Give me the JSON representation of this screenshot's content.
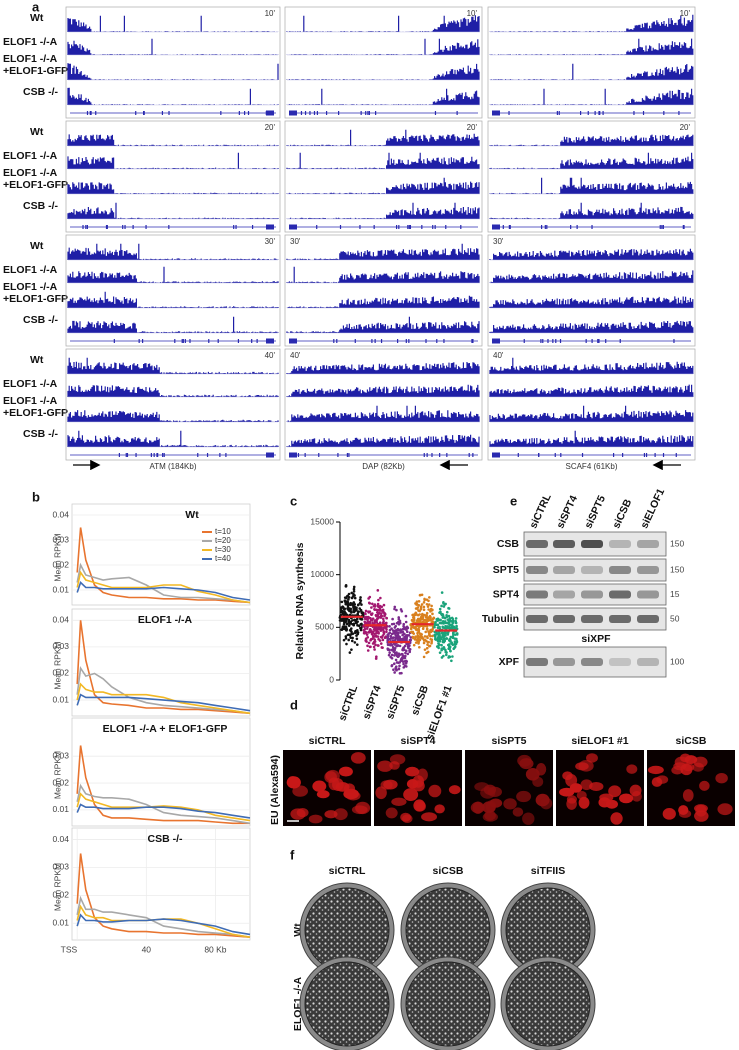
{
  "panel_labels": [
    "a",
    "b",
    "c",
    "d",
    "e",
    "f"
  ],
  "panel_a": {
    "condition_lines": [
      "Wt",
      "ELOF1 -/-A",
      "ELOF1 -/-A",
      "+ELOF1-GFP",
      "CSB -/-"
    ],
    "times": [
      "10'",
      "20'",
      "30'",
      "40'"
    ],
    "genes": [
      "ATM (184Kb)",
      "DAP (82Kb)",
      "SCAF4 (61Kb)"
    ]
  },
  "chart_data": [
    {
      "type": "line",
      "title": "Wt",
      "ylabel": "Mean RPKM",
      "x": [
        0,
        2,
        5,
        10,
        15,
        20,
        30,
        40,
        50,
        60,
        70,
        80,
        90,
        100
      ],
      "xlim": [
        -3,
        100
      ],
      "ylim": [
        0.004,
        0.042
      ],
      "yticks": [
        0.01,
        0.02,
        0.03,
        0.04
      ],
      "legend": "upper right",
      "series": [
        {
          "name": "t=10",
          "color": "#e8742f",
          "values": [
            0.017,
            0.035,
            0.022,
            0.012,
            0.009,
            0.008,
            0.007,
            0.007,
            0.0065,
            0.0065,
            0.006,
            0.006,
            0.0055,
            0.005
          ]
        },
        {
          "name": "t=20",
          "color": "#a8a8a8",
          "values": [
            0.013,
            0.02,
            0.016,
            0.015,
            0.014,
            0.0145,
            0.015,
            0.012,
            0.008,
            0.007,
            0.007,
            0.0065,
            0.006,
            0.005
          ]
        },
        {
          "name": "t=30",
          "color": "#f2b824",
          "values": [
            0.011,
            0.017,
            0.014,
            0.013,
            0.012,
            0.011,
            0.011,
            0.011,
            0.012,
            0.012,
            0.0095,
            0.008,
            0.006,
            0.005
          ]
        },
        {
          "name": "t=40",
          "color": "#3f6cb5",
          "values": [
            0.009,
            0.013,
            0.011,
            0.011,
            0.0105,
            0.0105,
            0.0105,
            0.0105,
            0.011,
            0.0105,
            0.01,
            0.009,
            0.007,
            0.006
          ]
        }
      ]
    },
    {
      "type": "line",
      "title": "ELOF1 -/-A",
      "ylabel": "Mean RPKM",
      "x": [
        0,
        2,
        5,
        10,
        15,
        20,
        30,
        40,
        50,
        60,
        70,
        80,
        90,
        100
      ],
      "xlim": [
        -3,
        100
      ],
      "ylim": [
        0.004,
        0.042
      ],
      "yticks": [
        0.01,
        0.02,
        0.03,
        0.04
      ],
      "series": [
        {
          "color": "#e8742f",
          "values": [
            0.016,
            0.04,
            0.025,
            0.012,
            0.009,
            0.0085,
            0.008,
            0.007,
            0.007,
            0.0065,
            0.0065,
            0.006,
            0.0055,
            0.005
          ]
        },
        {
          "color": "#a8a8a8",
          "values": [
            0.012,
            0.022,
            0.019,
            0.02,
            0.018,
            0.015,
            0.011,
            0.009,
            0.008,
            0.0075,
            0.007,
            0.0065,
            0.006,
            0.005
          ]
        },
        {
          "color": "#f2b824",
          "values": [
            0.01,
            0.016,
            0.014,
            0.013,
            0.013,
            0.012,
            0.012,
            0.012,
            0.011,
            0.009,
            0.008,
            0.007,
            0.006,
            0.005
          ]
        },
        {
          "color": "#3f6cb5",
          "values": [
            0.008,
            0.012,
            0.011,
            0.011,
            0.011,
            0.011,
            0.011,
            0.0105,
            0.01,
            0.0095,
            0.009,
            0.008,
            0.007,
            0.006
          ]
        }
      ]
    },
    {
      "type": "line",
      "title": "ELOF1 -/-A + ELOF1-GFP",
      "ylabel": "Mean RPKM",
      "x": [
        0,
        2,
        5,
        10,
        15,
        20,
        30,
        40,
        50,
        60,
        70,
        80,
        90,
        100
      ],
      "xlim": [
        -3,
        100
      ],
      "ylim": [
        0.004,
        0.042
      ],
      "yticks": [
        0.01,
        0.02,
        0.03
      ],
      "series": [
        {
          "color": "#e8742f",
          "values": [
            0.016,
            0.034,
            0.022,
            0.012,
            0.008,
            0.007,
            0.007,
            0.0065,
            0.006,
            0.006,
            0.006,
            0.0055,
            0.005,
            0.005
          ]
        },
        {
          "color": "#a8a8a8",
          "values": [
            0.013,
            0.019,
            0.016,
            0.015,
            0.0145,
            0.0145,
            0.014,
            0.012,
            0.009,
            0.008,
            0.0075,
            0.007,
            0.006,
            0.005
          ]
        },
        {
          "color": "#f2b824",
          "values": [
            0.011,
            0.016,
            0.014,
            0.013,
            0.012,
            0.011,
            0.011,
            0.011,
            0.0115,
            0.011,
            0.01,
            0.008,
            0.007,
            0.006
          ]
        },
        {
          "color": "#3f6cb5",
          "values": [
            0.009,
            0.012,
            0.011,
            0.011,
            0.0105,
            0.0105,
            0.0105,
            0.011,
            0.011,
            0.0105,
            0.0095,
            0.009,
            0.008,
            0.007
          ]
        }
      ]
    },
    {
      "type": "line",
      "title": "CSB -/-",
      "ylabel": "Mean RPKM",
      "x": [
        0,
        2,
        5,
        10,
        15,
        20,
        30,
        40,
        50,
        60,
        70,
        80,
        90,
        100
      ],
      "xlim": [
        -3,
        100
      ],
      "ylim": [
        0.004,
        0.042
      ],
      "yticks": [
        0.01,
        0.02,
        0.03,
        0.04
      ],
      "xticks": [
        {
          "value": 0,
          "label": "TSS"
        },
        40,
        {
          "value": 80,
          "label": "80  Kb"
        }
      ],
      "series": [
        {
          "color": "#e8742f",
          "values": [
            0.017,
            0.035,
            0.022,
            0.012,
            0.009,
            0.008,
            0.007,
            0.007,
            0.0065,
            0.0065,
            0.006,
            0.006,
            0.0055,
            0.005
          ]
        },
        {
          "color": "#a8a8a8",
          "values": [
            0.013,
            0.019,
            0.015,
            0.015,
            0.014,
            0.014,
            0.013,
            0.012,
            0.009,
            0.008,
            0.007,
            0.0065,
            0.006,
            0.005
          ]
        },
        {
          "color": "#f2b824",
          "values": [
            0.011,
            0.016,
            0.013,
            0.012,
            0.012,
            0.011,
            0.011,
            0.011,
            0.0115,
            0.0115,
            0.01,
            0.008,
            0.006,
            0.005
          ]
        },
        {
          "color": "#3f6cb5",
          "values": [
            0.009,
            0.013,
            0.011,
            0.011,
            0.0105,
            0.0105,
            0.011,
            0.011,
            0.0115,
            0.011,
            0.01,
            0.009,
            0.007,
            0.006
          ]
        }
      ]
    },
    {
      "type": "strip",
      "ylabel": "Relative RNA synthesis",
      "categories": [
        "siCTRL",
        "siSPT4",
        "siSPT5",
        "siCSB",
        "siELOF1 #1"
      ],
      "colors": [
        "#111111",
        "#a3176f",
        "#7a2a8c",
        "#d9801e",
        "#1aa37a"
      ],
      "values": [
        6000,
        5200,
        3600,
        5300,
        4700
      ],
      "ylim": [
        0,
        15000
      ],
      "yticks": [
        0,
        5000,
        10000,
        15000
      ]
    }
  ],
  "panel_d": {
    "columns": [
      "siCTRL",
      "siSPT4",
      "siSPT5",
      "siELOF1 #1",
      "siCSB"
    ],
    "ylabel": "EU (Alexa594)"
  },
  "panel_e": {
    "lanes": [
      "siCTRL",
      "siSPT4",
      "siSPT5",
      "siCSB",
      "siELOF1"
    ],
    "rows": [
      "CSB",
      "SPT5",
      "SPT4",
      "Tubulin"
    ],
    "mw": [
      150,
      150,
      15,
      50
    ],
    "xpf_title": "siXPF",
    "xpf_row": "XPF",
    "xpf_mw": 100
  },
  "panel_f": {
    "columns": [
      "siCTRL",
      "siCSB",
      "siTFIIS"
    ],
    "rows": [
      "Wt",
      "ELOF1 -/-A"
    ]
  }
}
